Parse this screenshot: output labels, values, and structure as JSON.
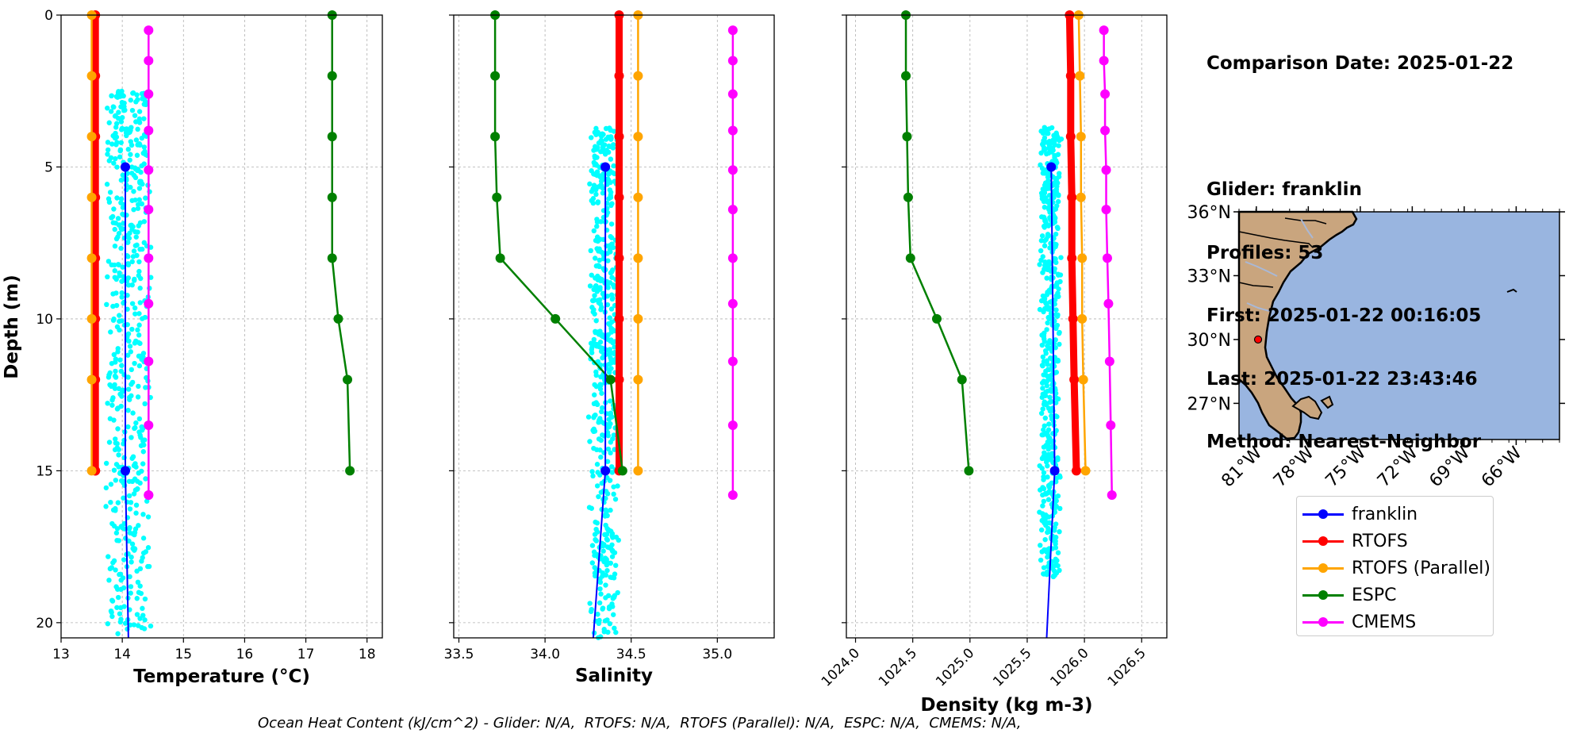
{
  "info": {
    "comparison_date": "Comparison Date: 2025-01-22",
    "glider": "Glider: franklin",
    "profiles": "Profiles: 53",
    "first": "First: 2025-01-22 00:16:05",
    "last": "Last: 2025-01-22 23:43:46",
    "method": "Method: Nearest-Neighbor"
  },
  "footer": {
    "ohc": "Ocean Heat Content (kJ/cm^2) - Glider: N/A,  RTOFS: N/A,  RTOFS (Parallel): N/A,  ESPC: N/A,  CMEMS: N/A,"
  },
  "legend": [
    {
      "label": "franklin",
      "color": "#0000ff"
    },
    {
      "label": "RTOFS",
      "color": "#ff0000"
    },
    {
      "label": "RTOFS (Parallel)",
      "color": "#ffa500"
    },
    {
      "label": "ESPC",
      "color": "#008000"
    },
    {
      "label": "CMEMS",
      "color": "#ff00ff"
    }
  ],
  "colors": {
    "glider_points": "#00ffff",
    "land": "#c9a57e",
    "ocean": "#99b5e0",
    "glider_marker": "#ff0000",
    "grid": "#b0b0b0"
  },
  "map": {
    "lat_ticks": [
      "36°N",
      "33°N",
      "30°N",
      "27°N"
    ],
    "lon_ticks": [
      "81°W",
      "78°W",
      "75°W",
      "72°W",
      "69°W",
      "66°W"
    ],
    "glider_position": {
      "lon": -80.9,
      "lat": 30.0
    }
  },
  "chart_data": [
    {
      "type": "line",
      "xlabel": "Temperature (°C)",
      "ylabel": "Depth (m)",
      "xlim": [
        13,
        18.25
      ],
      "ylim": [
        20.5,
        0
      ],
      "grid": true,
      "x_ticks": [
        13,
        14,
        15,
        16,
        17,
        18
      ],
      "y_ticks": [
        0,
        5,
        10,
        15,
        20
      ],
      "series": [
        {
          "name": "franklin",
          "x": [
            14.05,
            14.05,
            14.1
          ],
          "y": [
            5,
            15,
            20.5
          ]
        },
        {
          "name": "RTOFS",
          "x": [
            13.56,
            13.56,
            13.56,
            13.56,
            13.56,
            13.56,
            13.56,
            13.56,
            13.56
          ],
          "y": [
            0,
            2,
            4,
            6,
            8,
            10,
            12,
            15,
            15
          ]
        },
        {
          "name": "RTOFS (Parallel)",
          "x": [
            13.5,
            13.5,
            13.5,
            13.5,
            13.5,
            13.5,
            13.5,
            13.5
          ],
          "y": [
            0,
            2,
            4,
            6,
            8,
            10,
            12,
            15
          ]
        },
        {
          "name": "ESPC",
          "x": [
            17.43,
            17.43,
            17.43,
            17.43,
            17.43,
            17.53,
            17.68,
            17.72
          ],
          "y": [
            0,
            2,
            4,
            6,
            8,
            10,
            12,
            15
          ]
        },
        {
          "name": "CMEMS",
          "x": [
            14.43,
            14.43,
            14.43,
            14.43,
            14.43,
            14.43,
            14.43,
            14.43,
            14.43,
            14.43,
            14.43,
            14.43
          ],
          "y": [
            0.5,
            1.5,
            2.6,
            3.8,
            5.1,
            6.4,
            8.0,
            9.5,
            11.4,
            13.5,
            15.8,
            15.8
          ]
        }
      ],
      "glider_scatter": {
        "x_range": [
          13.7,
          14.5
        ],
        "y_range": [
          2.5,
          20.5
        ]
      }
    },
    {
      "type": "line",
      "xlabel": "Salinity",
      "xlim": [
        33.47,
        35.33
      ],
      "ylim": [
        20.5,
        0
      ],
      "grid": true,
      "x_ticks": [
        33.5,
        34.0,
        34.5,
        35.0
      ],
      "y_ticks": [
        0,
        5,
        10,
        15,
        20
      ],
      "series": [
        {
          "name": "franklin",
          "x": [
            34.35,
            34.35,
            34.28
          ],
          "y": [
            5,
            15,
            20.5
          ]
        },
        {
          "name": "RTOFS",
          "x": [
            34.43,
            34.43,
            34.43,
            34.43,
            34.43,
            34.43,
            34.43,
            34.43
          ],
          "y": [
            0,
            2,
            4,
            6,
            8,
            10,
            12,
            15
          ]
        },
        {
          "name": "RTOFS (Parallel)",
          "x": [
            34.54,
            34.54,
            34.54,
            34.54,
            34.54,
            34.54,
            34.54,
            34.54
          ],
          "y": [
            0,
            2,
            4,
            6,
            8,
            10,
            12,
            15
          ]
        },
        {
          "name": "ESPC",
          "x": [
            33.71,
            33.71,
            33.71,
            33.72,
            33.74,
            34.06,
            34.38,
            34.45
          ],
          "y": [
            0,
            2,
            4,
            6,
            8,
            10,
            12,
            15
          ]
        },
        {
          "name": "CMEMS",
          "x": [
            35.09,
            35.09,
            35.09,
            35.09,
            35.09,
            35.09,
            35.09,
            35.09,
            35.09,
            35.09,
            35.09
          ],
          "y": [
            0.5,
            1.5,
            2.6,
            3.8,
            5.1,
            6.4,
            8.0,
            9.5,
            11.4,
            13.5,
            15.8
          ]
        }
      ],
      "glider_scatter": {
        "x_range": [
          34.25,
          34.43
        ],
        "y_range": [
          3.7,
          20.5
        ]
      }
    },
    {
      "type": "line",
      "xlabel": "Density (kg m-3)",
      "xlim": [
        1023.92,
        1026.72
      ],
      "ylim": [
        20.5,
        0
      ],
      "grid": true,
      "x_ticks": [
        1024.0,
        1024.5,
        1025.0,
        1025.5,
        1026.0,
        1026.5
      ],
      "y_ticks": [
        0,
        5,
        10,
        15,
        20
      ],
      "series": [
        {
          "name": "franklin",
          "x": [
            1025.71,
            1025.74,
            1025.67
          ],
          "y": [
            5,
            15,
            20.5
          ]
        },
        {
          "name": "RTOFS",
          "x": [
            1025.87,
            1025.88,
            1025.88,
            1025.89,
            1025.89,
            1025.9,
            1025.91,
            1025.93
          ],
          "y": [
            0,
            2,
            4,
            6,
            8,
            10,
            12,
            15
          ]
        },
        {
          "name": "RTOFS (Parallel)",
          "x": [
            1025.95,
            1025.96,
            1025.97,
            1025.97,
            1025.98,
            1025.98,
            1025.99,
            1026.01
          ],
          "y": [
            0,
            2,
            4,
            6,
            8,
            10,
            12,
            15
          ]
        },
        {
          "name": "ESPC",
          "x": [
            1024.44,
            1024.44,
            1024.45,
            1024.46,
            1024.48,
            1024.71,
            1024.93,
            1024.99
          ],
          "y": [
            0,
            2,
            4,
            6,
            8,
            10,
            12,
            15
          ]
        },
        {
          "name": "CMEMS",
          "x": [
            1026.17,
            1026.17,
            1026.18,
            1026.18,
            1026.19,
            1026.19,
            1026.2,
            1026.21,
            1026.22,
            1026.23,
            1026.24
          ],
          "y": [
            0.5,
            1.5,
            2.6,
            3.8,
            5.1,
            6.4,
            8.0,
            9.5,
            11.4,
            13.5,
            15.8
          ]
        }
      ],
      "glider_scatter": {
        "x_range": [
          1025.6,
          1025.8
        ],
        "y_range": [
          3.7,
          18.5
        ]
      }
    }
  ]
}
